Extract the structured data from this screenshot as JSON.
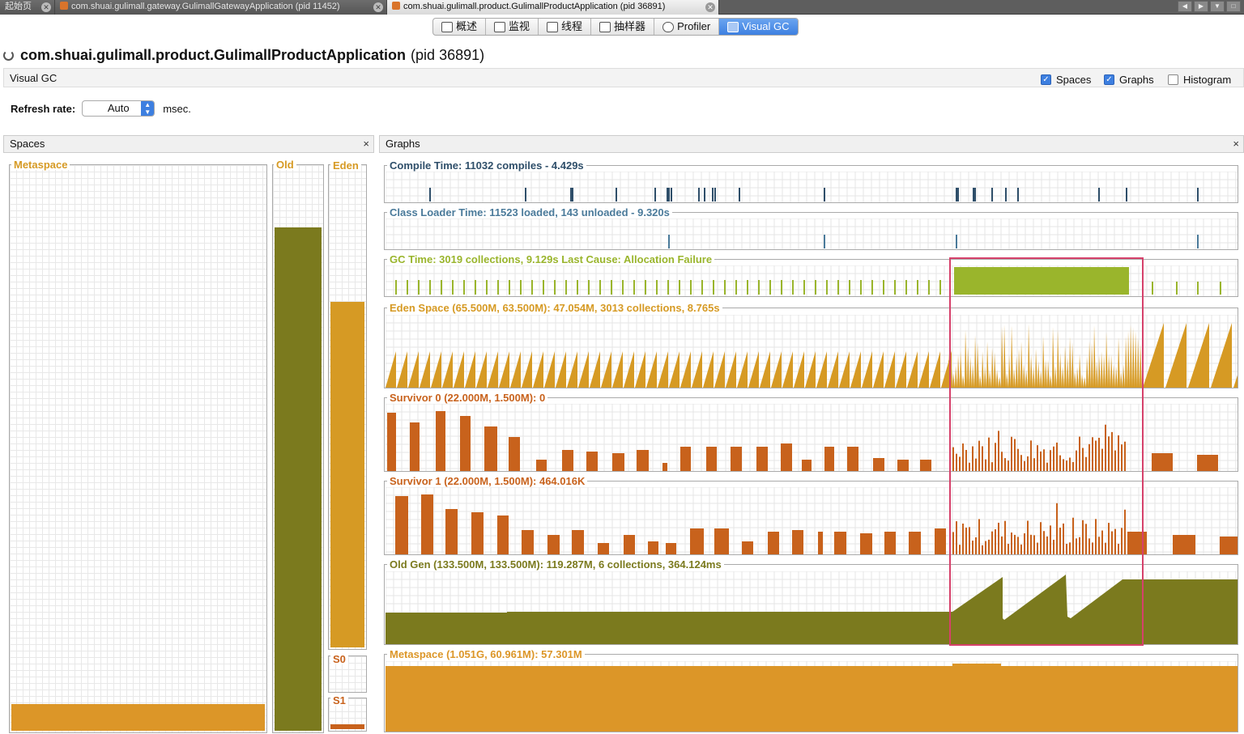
{
  "tabs": [
    {
      "label": "起始页"
    },
    {
      "label": "com.shuai.gulimall.gateway.GulimallGatewayApplication (pid 11452)"
    },
    {
      "label": "com.shuai.gulimall.product.GulimallProductApplication (pid 36891)"
    }
  ],
  "toolbar": {
    "buttons": [
      {
        "label": "概述",
        "icon": "overview-icon"
      },
      {
        "label": "监视",
        "icon": "monitor-icon"
      },
      {
        "label": "线程",
        "icon": "threads-icon"
      },
      {
        "label": "抽样器",
        "icon": "sampler-icon"
      },
      {
        "label": "Profiler",
        "icon": "profiler-icon"
      },
      {
        "label": "Visual GC",
        "icon": "visualgc-icon"
      }
    ],
    "active": "Visual GC"
  },
  "app": {
    "name": "com.shuai.gulimall.product.GulimallProductApplication",
    "pid": "(pid 36891)"
  },
  "view": {
    "title": "Visual GC",
    "checkboxes": [
      {
        "label": "Spaces",
        "checked": true
      },
      {
        "label": "Graphs",
        "checked": true
      },
      {
        "label": "Histogram",
        "checked": false
      }
    ]
  },
  "refresh": {
    "label": "Refresh rate:",
    "value": "Auto",
    "unit": "msec."
  },
  "spaces_panel": {
    "title": "Spaces",
    "close": "×",
    "metaspace": {
      "label": "Metaspace",
      "level": 0.053
    },
    "old": {
      "label": "Old",
      "level": 0.893
    },
    "eden": {
      "label": "Eden",
      "level": 0.72
    },
    "s0": {
      "label": "S0",
      "level": 0.0
    },
    "s1": {
      "label": "S1",
      "level": 0.26
    }
  },
  "graphs_panel": {
    "title": "Graphs",
    "close": "×",
    "compile": {
      "label": "Compile Time: 11032 compiles - 4.429s",
      "color": "#2f4f6a"
    },
    "classloader": {
      "label": "Class Loader Time: 11523 loaded, 143 unloaded - 9.320s",
      "color": "#4a7a9a"
    },
    "gc": {
      "label": "GC Time: 3019 collections, 9.129s  Last Cause: Allocation Failure",
      "color": "#9ab52c"
    },
    "eden": {
      "label": "Eden Space (65.500M, 63.500M): 47.054M, 3013 collections, 8.765s",
      "color": "#d69a24"
    },
    "survivor0": {
      "label": "Survivor 0 (22.000M, 1.500M): 0",
      "color": "#c8621c"
    },
    "survivor1": {
      "label": "Survivor 1 (22.000M, 1.500M): 464.016K",
      "color": "#c8621c"
    },
    "oldgen": {
      "label": "Old Gen (133.500M, 133.500M): 119.287M, 6 collections, 364.124ms",
      "color": "#7b7a1e"
    },
    "metaspace": {
      "label": "Metaspace (1.051G, 60.961M): 57.301M",
      "color": "#dc9628"
    }
  }
}
